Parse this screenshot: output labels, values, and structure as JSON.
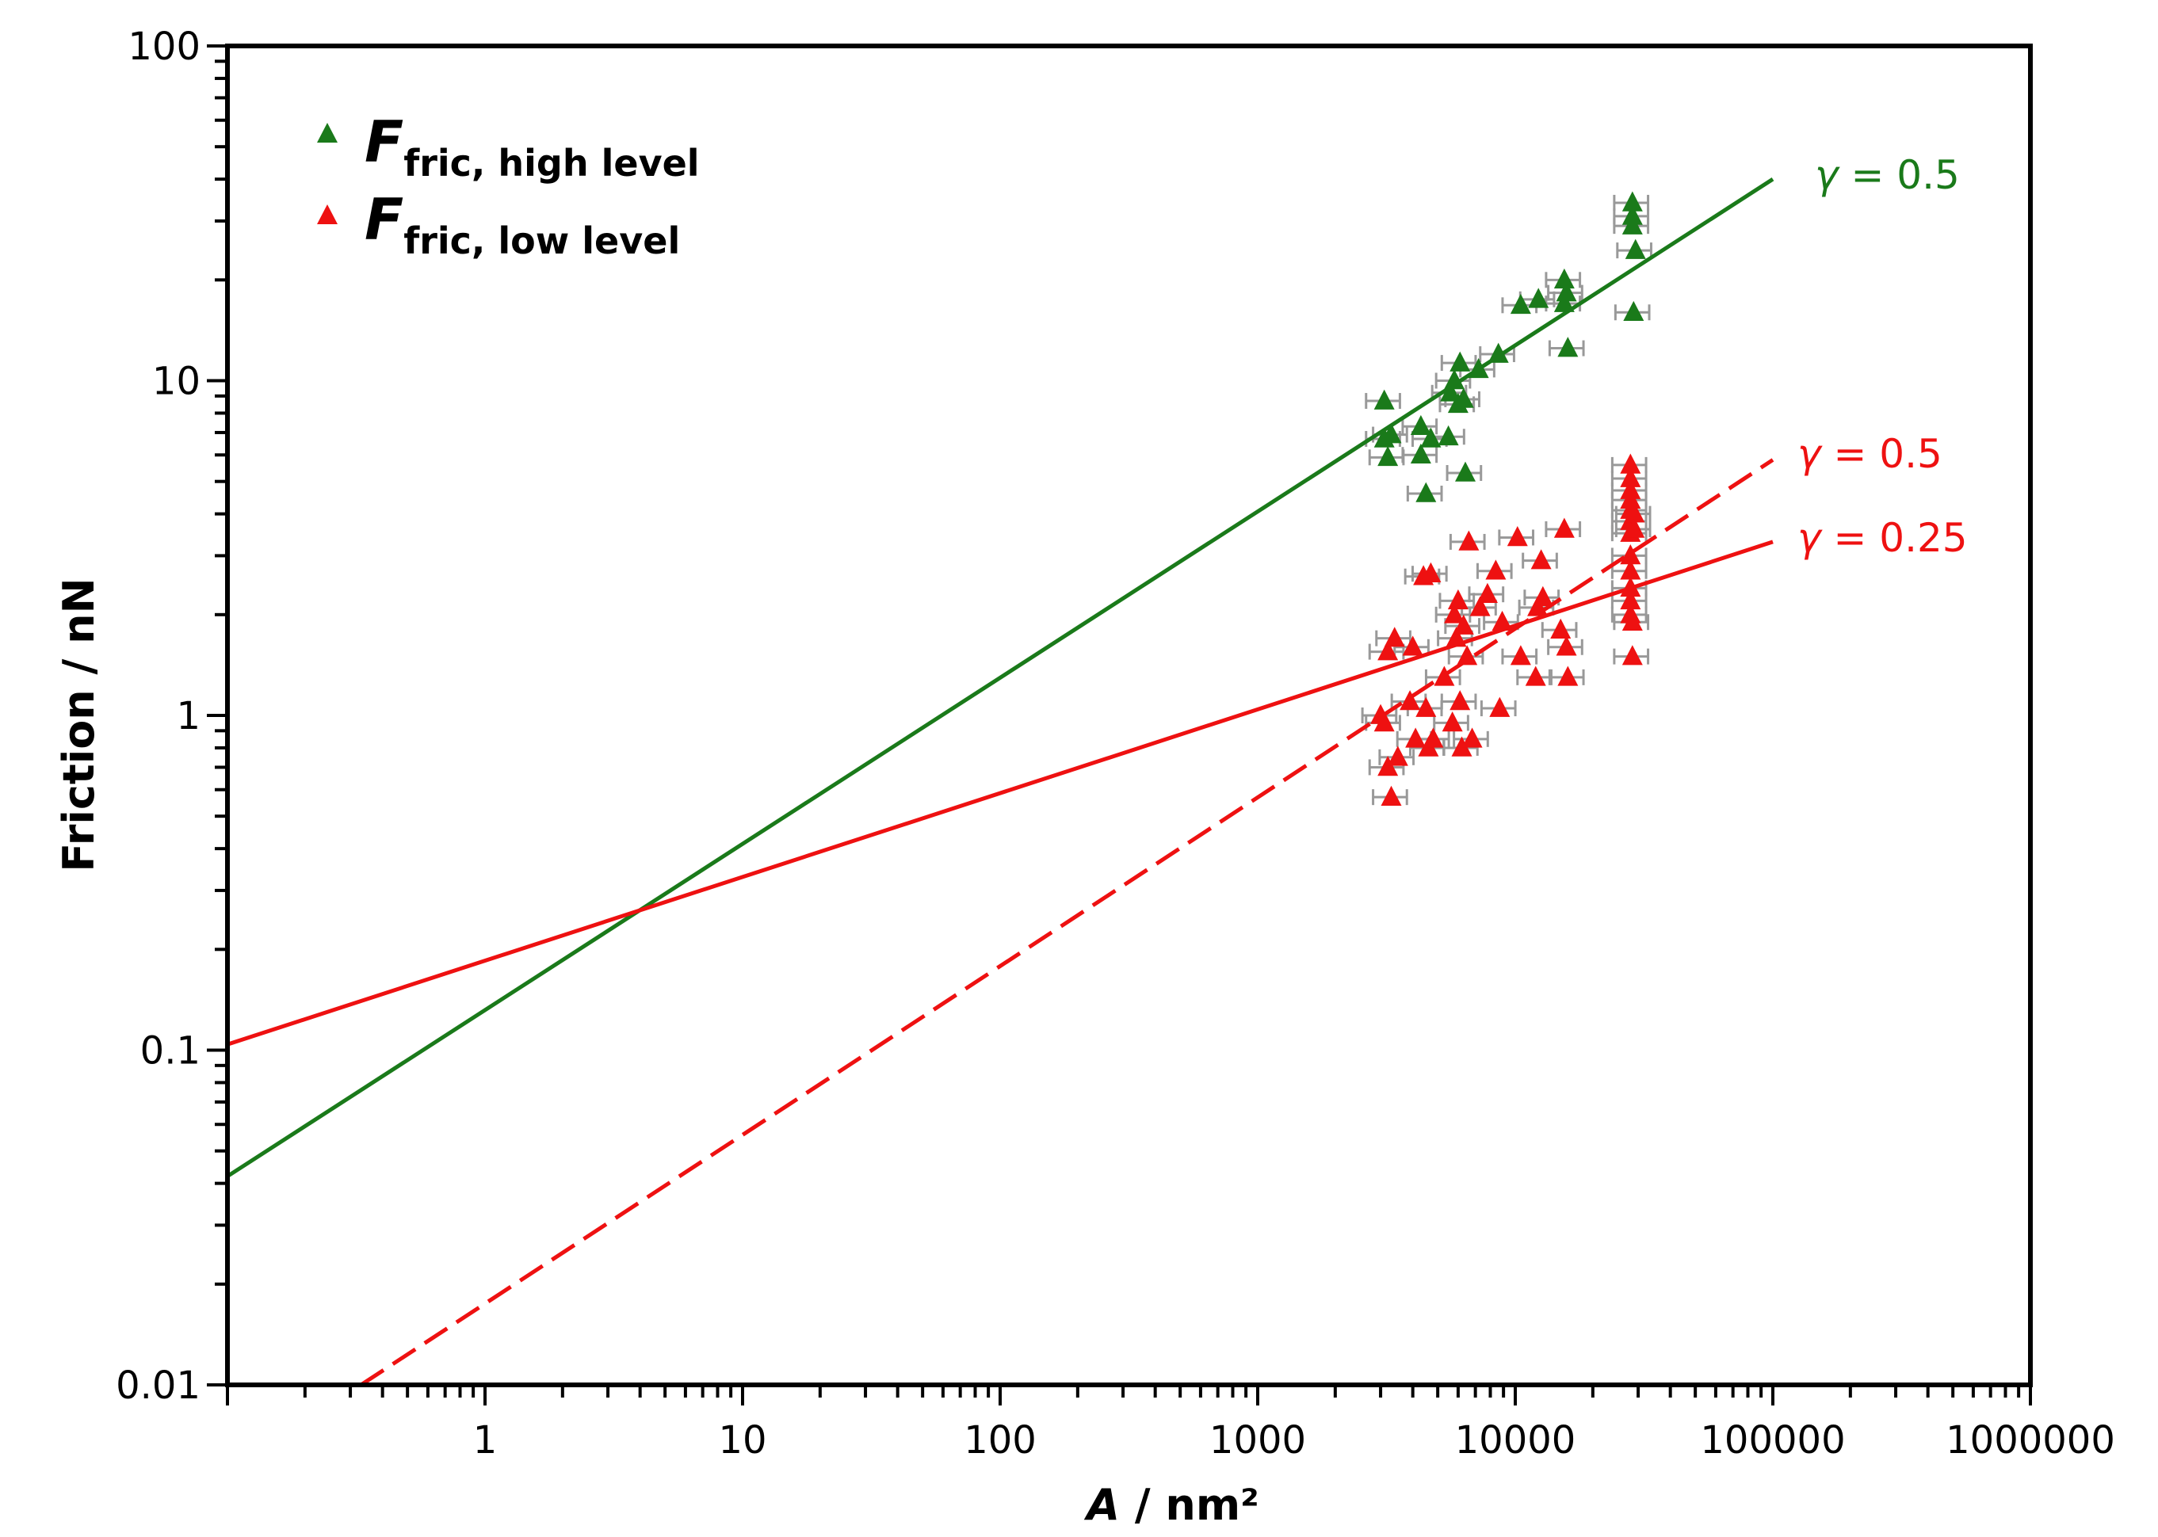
{
  "chart_data": {
    "type": "scatter",
    "title": "",
    "xlabel": {
      "italic": "A",
      "text": " / nm²"
    },
    "ylabel": "Friction / nN",
    "xscale": "log",
    "yscale": "log",
    "xlim": [
      0.1,
      1000000
    ],
    "ylim": [
      0.01,
      100
    ],
    "xtick_labels": [
      "1",
      "10",
      "100",
      "1000",
      "10000",
      "100000",
      "1000000"
    ],
    "ytick_labels": [
      "0.01",
      "0.1",
      "1",
      "10",
      "100"
    ],
    "legend": {
      "position": "top-left",
      "entries": [
        {
          "symbol": "F",
          "subscript": "fric, high level",
          "color": "#1a7a1a"
        },
        {
          "symbol": "F",
          "subscript": "fric, low level",
          "color": "#ee1111"
        }
      ]
    },
    "series": [
      {
        "name": "F fric, high level",
        "color": "#1a7a1a",
        "marker": "triangle",
        "x": [
          3100,
          3100,
          3200,
          3300,
          4300,
          4300,
          4500,
          4700,
          5500,
          5600,
          5800,
          6000,
          6100,
          6300,
          6400,
          7200,
          8600,
          10500,
          12300,
          15500,
          15500,
          16000,
          15800,
          28500,
          28500,
          28500,
          28800,
          29300
        ],
        "y": [
          8.7,
          6.7,
          5.9,
          6.9,
          7.3,
          6.0,
          4.6,
          6.7,
          6.8,
          9.2,
          10.0,
          8.5,
          11.3,
          8.8,
          5.3,
          10.8,
          12.0,
          16.8,
          17.5,
          20.0,
          17.0,
          12.5,
          18.3,
          34.0,
          31.0,
          29.0,
          16.0,
          24.5
        ],
        "xerr_rel": 0.15
      },
      {
        "name": "F fric, low level",
        "color": "#ee1111",
        "marker": "triangle",
        "x": [
          3000,
          3100,
          3200,
          3200,
          3300,
          3400,
          3500,
          3900,
          4000,
          4100,
          4400,
          4500,
          4600,
          4700,
          4800,
          5300,
          5700,
          5800,
          5900,
          6000,
          6100,
          6200,
          6300,
          6500,
          6600,
          6800,
          7300,
          7800,
          8400,
          8700,
          8900,
          10200,
          10500,
          12000,
          12200,
          12600,
          12800,
          15000,
          15500,
          15800,
          16000,
          28000,
          28000,
          28000,
          28000,
          28000,
          28000,
          28000,
          28000,
          28000,
          28000,
          28000,
          28000,
          28500,
          28500,
          29000,
          29000
        ],
        "y": [
          1.0,
          0.95,
          1.55,
          0.7,
          0.57,
          1.7,
          0.75,
          1.1,
          1.6,
          0.85,
          2.6,
          1.05,
          0.8,
          2.65,
          0.85,
          1.3,
          0.95,
          2.0,
          1.7,
          2.2,
          1.1,
          0.8,
          1.85,
          1.5,
          3.3,
          0.85,
          2.1,
          2.3,
          2.7,
          1.05,
          1.9,
          3.4,
          1.5,
          1.3,
          2.1,
          2.9,
          2.25,
          1.8,
          3.6,
          1.6,
          1.3,
          5.6,
          5.1,
          4.7,
          4.4,
          4.1,
          3.8,
          3.5,
          3.0,
          2.7,
          2.4,
          2.2,
          2.0,
          1.9,
          1.5,
          4.0,
          3.6
        ],
        "xerr_rel": 0.15
      }
    ],
    "fit_lines": [
      {
        "color": "#1a7a1a",
        "style": "solid",
        "x": [
          0.1,
          100000
        ],
        "y": [
          0.042,
          40.0
        ],
        "label": "γ = 0.5"
      },
      {
        "color": "#ee1111",
        "style": "dashed",
        "x": [
          0.33,
          100000
        ],
        "y": [
          0.01,
          5.8
        ],
        "label": "γ = 0.5"
      },
      {
        "color": "#ee1111",
        "style": "solid",
        "x": [
          0.1,
          100000
        ],
        "y": [
          0.104,
          3.3
        ],
        "label": "γ = 0.25"
      }
    ],
    "errorbar_color": "#999999"
  }
}
